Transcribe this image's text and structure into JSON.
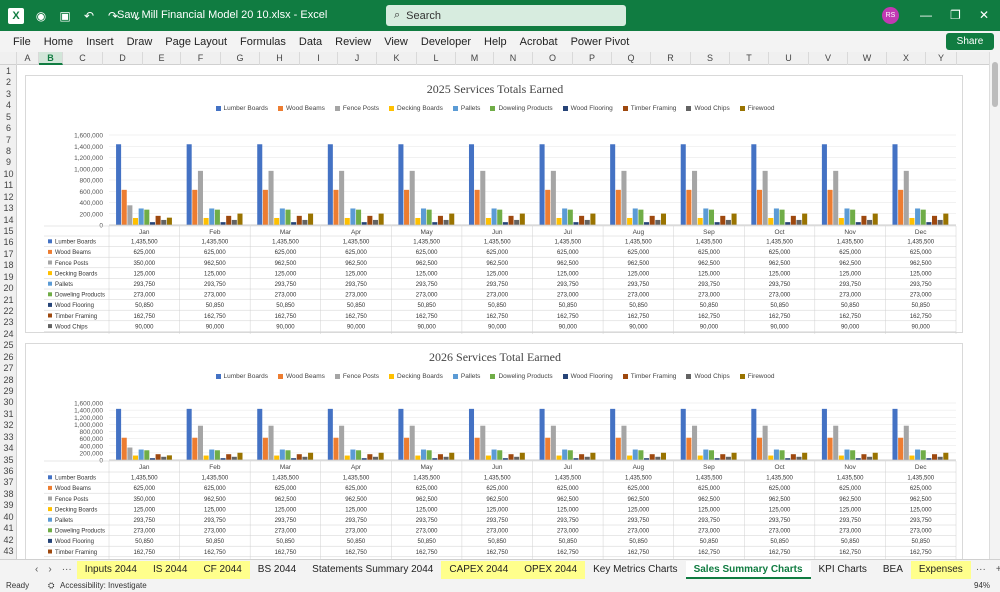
{
  "titlebar": {
    "doc_title": "Saw Mill Financial Model 20 10.xlsx  -  Excel",
    "search_placeholder": "Search",
    "avatar_initials": "RS"
  },
  "menu": [
    "File",
    "Home",
    "Insert",
    "Draw",
    "Page Layout",
    "Formulas",
    "Data",
    "Review",
    "View",
    "Developer",
    "Help",
    "Acrobat",
    "Power Pivot"
  ],
  "share_label": "Share",
  "columns": [
    "A",
    "B",
    "C",
    "D",
    "E",
    "F",
    "G",
    "H",
    "I",
    "J",
    "K",
    "L",
    "M",
    "N",
    "O",
    "P",
    "Q",
    "R",
    "S",
    "T",
    "U",
    "V",
    "W",
    "X",
    "Y"
  ],
  "rows": [
    "1",
    "2",
    "3",
    "4",
    "5",
    "6",
    "7",
    "8",
    "9",
    "10",
    "11",
    "12",
    "13",
    "14",
    "15",
    "16",
    "17",
    "18",
    "19",
    "20",
    "21",
    "22",
    "23",
    "24",
    "25",
    "26",
    "27",
    "28",
    "29",
    "30",
    "31",
    "32",
    "33",
    "34",
    "35",
    "36",
    "37",
    "38",
    "39",
    "40",
    "41",
    "42",
    "43"
  ],
  "colors": {
    "Lumber Boards": "#4472c4",
    "Wood Beams": "#ed7d31",
    "Fence Posts": "#a5a5a5",
    "Decking Boards": "#ffc000",
    "Pallets": "#5b9bd5",
    "Doweling Products": "#70ad47",
    "Wood Flooring": "#264478",
    "Timber Framing": "#9e480e",
    "Wood Chips": "#636363",
    "Firewood": "#997300"
  },
  "chart_data": [
    {
      "type": "bar",
      "title": "2025 Services Totals Earned",
      "categories": [
        "Jan",
        "Feb",
        "Mar",
        "Apr",
        "May",
        "Jun",
        "Jul",
        "Aug",
        "Sep",
        "Oct",
        "Nov",
        "Dec"
      ],
      "yticks": [
        "1,600,000",
        "1,400,000",
        "1,200,000",
        "1,000,000",
        "800,000",
        "600,000",
        "400,000",
        "200,000",
        "0"
      ],
      "ylim": [
        0,
        1600000
      ],
      "series": [
        {
          "name": "Lumber Boards",
          "values": [
            1435500,
            1435500,
            1435500,
            1435500,
            1435500,
            1435500,
            1435500,
            1435500,
            1435500,
            1435500,
            1435500,
            1435500
          ],
          "labels": [
            "1,435,500",
            "1,435,500",
            "1,435,500",
            "1,435,500",
            "1,435,500",
            "1,435,500",
            "1,435,500",
            "1,435,500",
            "1,435,500",
            "1,435,500",
            "1,435,500",
            "1,435,500"
          ]
        },
        {
          "name": "Wood Beams",
          "values": [
            625000,
            625000,
            625000,
            625000,
            625000,
            625000,
            625000,
            625000,
            625000,
            625000,
            625000,
            625000
          ],
          "labels": [
            "625,000",
            "625,000",
            "625,000",
            "625,000",
            "625,000",
            "625,000",
            "625,000",
            "625,000",
            "625,000",
            "625,000",
            "625,000",
            "625,000"
          ]
        },
        {
          "name": "Fence Posts",
          "values": [
            350000,
            962500,
            962500,
            962500,
            962500,
            962500,
            962500,
            962500,
            962500,
            962500,
            962500,
            962500
          ],
          "labels": [
            "350,000",
            "962,500",
            "962,500",
            "962,500",
            "962,500",
            "962,500",
            "962,500",
            "962,500",
            "962,500",
            "962,500",
            "962,500",
            "962,500"
          ]
        },
        {
          "name": "Decking Boards",
          "values": [
            125000,
            125000,
            125000,
            125000,
            125000,
            125000,
            125000,
            125000,
            125000,
            125000,
            125000,
            125000
          ],
          "labels": [
            "125,000",
            "125,000",
            "125,000",
            "125,000",
            "125,000",
            "125,000",
            "125,000",
            "125,000",
            "125,000",
            "125,000",
            "125,000",
            "125,000"
          ]
        },
        {
          "name": "Pallets",
          "values": [
            293750,
            293750,
            293750,
            293750,
            293750,
            293750,
            293750,
            293750,
            293750,
            293750,
            293750,
            293750
          ],
          "labels": [
            "293,750",
            "293,750",
            "293,750",
            "293,750",
            "293,750",
            "293,750",
            "293,750",
            "293,750",
            "293,750",
            "293,750",
            "293,750",
            "293,750"
          ]
        },
        {
          "name": "Doweling Products",
          "values": [
            273000,
            273000,
            273000,
            273000,
            273000,
            273000,
            273000,
            273000,
            273000,
            273000,
            273000,
            273000
          ],
          "labels": [
            "273,000",
            "273,000",
            "273,000",
            "273,000",
            "273,000",
            "273,000",
            "273,000",
            "273,000",
            "273,000",
            "273,000",
            "273,000",
            "273,000"
          ]
        },
        {
          "name": "Wood Flooring",
          "values": [
            50850,
            50850,
            50850,
            50850,
            50850,
            50850,
            50850,
            50850,
            50850,
            50850,
            50850,
            50850
          ],
          "labels": [
            "50,850",
            "50,850",
            "50,850",
            "50,850",
            "50,850",
            "50,850",
            "50,850",
            "50,850",
            "50,850",
            "50,850",
            "50,850",
            "50,850"
          ]
        },
        {
          "name": "Timber Framing",
          "values": [
            162750,
            162750,
            162750,
            162750,
            162750,
            162750,
            162750,
            162750,
            162750,
            162750,
            162750,
            162750
          ],
          "labels": [
            "162,750",
            "162,750",
            "162,750",
            "162,750",
            "162,750",
            "162,750",
            "162,750",
            "162,750",
            "162,750",
            "162,750",
            "162,750",
            "162,750"
          ]
        },
        {
          "name": "Wood Chips",
          "values": [
            90000,
            90000,
            90000,
            90000,
            90000,
            90000,
            90000,
            90000,
            90000,
            90000,
            90000,
            90000
          ],
          "labels": [
            "90,000",
            "90,000",
            "90,000",
            "90,000",
            "90,000",
            "90,000",
            "90,000",
            "90,000",
            "90,000",
            "90,000",
            "90,000",
            "90,000"
          ]
        },
        {
          "name": "Firewood",
          "values": [
            130500,
            203580,
            203580,
            203580,
            203580,
            203580,
            203580,
            203580,
            203580,
            203580,
            203580,
            203580
          ],
          "labels": [
            "130,500",
            "203,580",
            "203,580",
            "203,580",
            "203,580",
            "203,580",
            "203,580",
            "203,580",
            "203,580",
            "203,580",
            "203,580",
            "203,580"
          ]
        }
      ]
    },
    {
      "type": "bar",
      "title": "2026 Services Total Earned",
      "categories": [
        "Jan",
        "Feb",
        "Mar",
        "Apr",
        "May",
        "Jun",
        "Jul",
        "Aug",
        "Sep",
        "Oct",
        "Nov",
        "Dec"
      ],
      "yticks": [
        "1,600,000",
        "1,400,000",
        "1,200,000",
        "1,000,000",
        "800,000",
        "600,000",
        "400,000",
        "200,000",
        "0"
      ],
      "ylim": [
        0,
        1600000
      ],
      "series": [
        {
          "name": "Lumber Boards",
          "values": [
            1435500,
            1435500,
            1435500,
            1435500,
            1435500,
            1435500,
            1435500,
            1435500,
            1435500,
            1435500,
            1435500,
            1435500
          ],
          "labels": [
            "1,435,500",
            "1,435,500",
            "1,435,500",
            "1,435,500",
            "1,435,500",
            "1,435,500",
            "1,435,500",
            "1,435,500",
            "1,435,500",
            "1,435,500",
            "1,435,500",
            "1,435,500"
          ]
        },
        {
          "name": "Wood Beams",
          "values": [
            625000,
            625000,
            625000,
            625000,
            625000,
            625000,
            625000,
            625000,
            625000,
            625000,
            625000,
            625000
          ],
          "labels": [
            "625,000",
            "625,000",
            "625,000",
            "625,000",
            "625,000",
            "625,000",
            "625,000",
            "625,000",
            "625,000",
            "625,000",
            "625,000",
            "625,000"
          ]
        },
        {
          "name": "Fence Posts",
          "values": [
            350000,
            962500,
            962500,
            962500,
            962500,
            962500,
            962500,
            962500,
            962500,
            962500,
            962500,
            962500
          ],
          "labels": [
            "350,000",
            "962,500",
            "962,500",
            "962,500",
            "962,500",
            "962,500",
            "962,500",
            "962,500",
            "962,500",
            "962,500",
            "962,500",
            "962,500"
          ]
        },
        {
          "name": "Decking Boards",
          "values": [
            125000,
            125000,
            125000,
            125000,
            125000,
            125000,
            125000,
            125000,
            125000,
            125000,
            125000,
            125000
          ],
          "labels": [
            "125,000",
            "125,000",
            "125,000",
            "125,000",
            "125,000",
            "125,000",
            "125,000",
            "125,000",
            "125,000",
            "125,000",
            "125,000",
            "125,000"
          ]
        },
        {
          "name": "Pallets",
          "values": [
            293750,
            293750,
            293750,
            293750,
            293750,
            293750,
            293750,
            293750,
            293750,
            293750,
            293750,
            293750
          ],
          "labels": [
            "293,750",
            "293,750",
            "293,750",
            "293,750",
            "293,750",
            "293,750",
            "293,750",
            "293,750",
            "293,750",
            "293,750",
            "293,750",
            "293,750"
          ]
        },
        {
          "name": "Doweling Products",
          "values": [
            273000,
            273000,
            273000,
            273000,
            273000,
            273000,
            273000,
            273000,
            273000,
            273000,
            273000,
            273000
          ],
          "labels": [
            "273,000",
            "273,000",
            "273,000",
            "273,000",
            "273,000",
            "273,000",
            "273,000",
            "273,000",
            "273,000",
            "273,000",
            "273,000",
            "273,000"
          ]
        },
        {
          "name": "Wood Flooring",
          "values": [
            50850,
            50850,
            50850,
            50850,
            50850,
            50850,
            50850,
            50850,
            50850,
            50850,
            50850,
            50850
          ],
          "labels": [
            "50,850",
            "50,850",
            "50,850",
            "50,850",
            "50,850",
            "50,850",
            "50,850",
            "50,850",
            "50,850",
            "50,850",
            "50,850",
            "50,850"
          ]
        },
        {
          "name": "Timber Framing",
          "values": [
            162750,
            162750,
            162750,
            162750,
            162750,
            162750,
            162750,
            162750,
            162750,
            162750,
            162750,
            162750
          ],
          "labels": [
            "162,750",
            "162,750",
            "162,750",
            "162,750",
            "162,750",
            "162,750",
            "162,750",
            "162,750",
            "162,750",
            "162,750",
            "162,750",
            "162,750"
          ]
        },
        {
          "name": "Wood Chips",
          "values": [
            90000,
            90000,
            90000,
            90000,
            90000,
            90000,
            90000,
            90000,
            90000,
            90000,
            90000,
            90000
          ],
          "labels": [
            "90,000",
            "90,000",
            "90,000",
            "90,000",
            "90,000",
            "90,000",
            "90,000",
            "90,000",
            "90,000",
            "90,000",
            "90,000",
            "90,000"
          ]
        },
        {
          "name": "Firewood",
          "values": [
            130500,
            203580,
            203580,
            203580,
            203580,
            203580,
            203580,
            203580,
            203580,
            203580,
            203580,
            203580
          ],
          "labels": [
            "130,500",
            "203,580",
            "203,580",
            "203,580",
            "203,580",
            "203,580",
            "203,580",
            "203,580",
            "203,580",
            "203,580",
            "203,580",
            "203,580"
          ]
        }
      ]
    }
  ],
  "sheet_tabs": [
    {
      "label": "Inputs 2044",
      "style": "y"
    },
    {
      "label": "IS 2044",
      "style": "y"
    },
    {
      "label": "CF 2044",
      "style": "y"
    },
    {
      "label": "BS 2044",
      "style": ""
    },
    {
      "label": "Statements Summary 2044",
      "style": ""
    },
    {
      "label": "CAPEX 2044",
      "style": "y"
    },
    {
      "label": "OPEX 2044",
      "style": "y"
    },
    {
      "label": "Key Metrics Charts",
      "style": ""
    },
    {
      "label": "Sales Summary Charts",
      "style": "active"
    },
    {
      "label": "KPI Charts",
      "style": ""
    },
    {
      "label": "BEA",
      "style": ""
    },
    {
      "label": "Expenses",
      "style": "y"
    }
  ],
  "tab_nav": {
    "prev": "‹",
    "next": "›",
    "more_left": "···",
    "more_right": "···",
    "add": "+"
  },
  "status": {
    "ready": "Ready",
    "accessibility": "Accessibility: Investigate",
    "zoom": "94%"
  }
}
